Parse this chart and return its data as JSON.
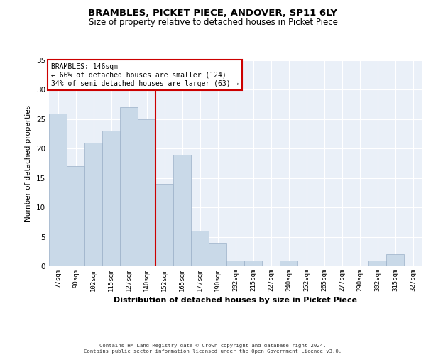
{
  "title": "BRAMBLES, PICKET PIECE, ANDOVER, SP11 6LY",
  "subtitle": "Size of property relative to detached houses in Picket Piece",
  "xlabel": "Distribution of detached houses by size in Picket Piece",
  "ylabel": "Number of detached properties",
  "categories": [
    "77sqm",
    "90sqm",
    "102sqm",
    "115sqm",
    "127sqm",
    "140sqm",
    "152sqm",
    "165sqm",
    "177sqm",
    "190sqm",
    "202sqm",
    "215sqm",
    "227sqm",
    "240sqm",
    "252sqm",
    "265sqm",
    "277sqm",
    "290sqm",
    "302sqm",
    "315sqm",
    "327sqm"
  ],
  "values": [
    26,
    17,
    21,
    23,
    27,
    25,
    14,
    19,
    6,
    4,
    1,
    1,
    0,
    1,
    0,
    0,
    0,
    0,
    1,
    2,
    0
  ],
  "bar_color": "#c9d9e8",
  "bar_edge_color": "#9ab0c8",
  "vline_x": 5.5,
  "vline_color": "#cc0000",
  "annotation_text": "BRAMBLES: 146sqm\n← 66% of detached houses are smaller (124)\n34% of semi-detached houses are larger (63) →",
  "annotation_box_color": "#ffffff",
  "annotation_box_edge": "#cc0000",
  "ylim": [
    0,
    35
  ],
  "yticks": [
    0,
    5,
    10,
    15,
    20,
    25,
    30,
    35
  ],
  "background_color": "#eaf0f8",
  "grid_color": "#ffffff",
  "footer_line1": "Contains HM Land Registry data © Crown copyright and database right 2024.",
  "footer_line2": "Contains public sector information licensed under the Open Government Licence v3.0."
}
